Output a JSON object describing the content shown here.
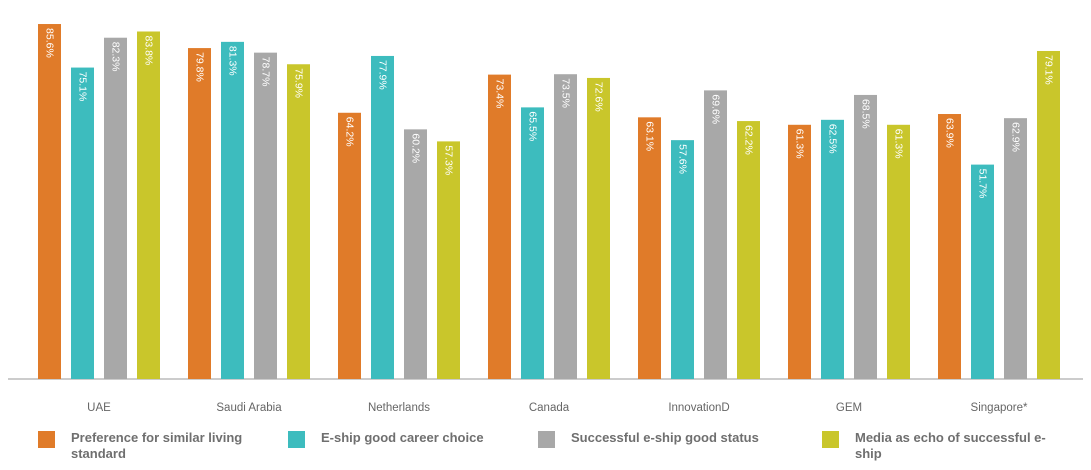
{
  "chart_data": {
    "type": "bar",
    "categories": [
      "UAE",
      "Saudi Arabia",
      "Netherlands",
      "Canada",
      "InnovationD",
      "GEM",
      "Singapore*"
    ],
    "series": [
      {
        "name": "Preference for similar living standard",
        "color": "#e07b29",
        "values": [
          85.6,
          79.8,
          64.2,
          73.4,
          63.1,
          61.3,
          63.9
        ]
      },
      {
        "name": "E-ship good career choice",
        "color": "#3dbcbe",
        "values": [
          75.1,
          81.3,
          77.9,
          65.5,
          57.6,
          62.5,
          51.7
        ]
      },
      {
        "name": "Successful e-ship good status",
        "color": "#a8a8a8",
        "values": [
          82.3,
          78.7,
          60.2,
          73.5,
          69.6,
          68.5,
          62.9
        ]
      },
      {
        "name": "Media as echo of successful e-ship",
        "color": "#c9c62b",
        "values": [
          83.8,
          75.9,
          57.3,
          72.6,
          62.2,
          61.3,
          79.1
        ]
      }
    ],
    "value_format": "%",
    "title": "",
    "xlabel": "",
    "ylabel": "",
    "ylim": [
      0,
      88.5
    ],
    "grid": false,
    "legend_position": "bottom"
  }
}
